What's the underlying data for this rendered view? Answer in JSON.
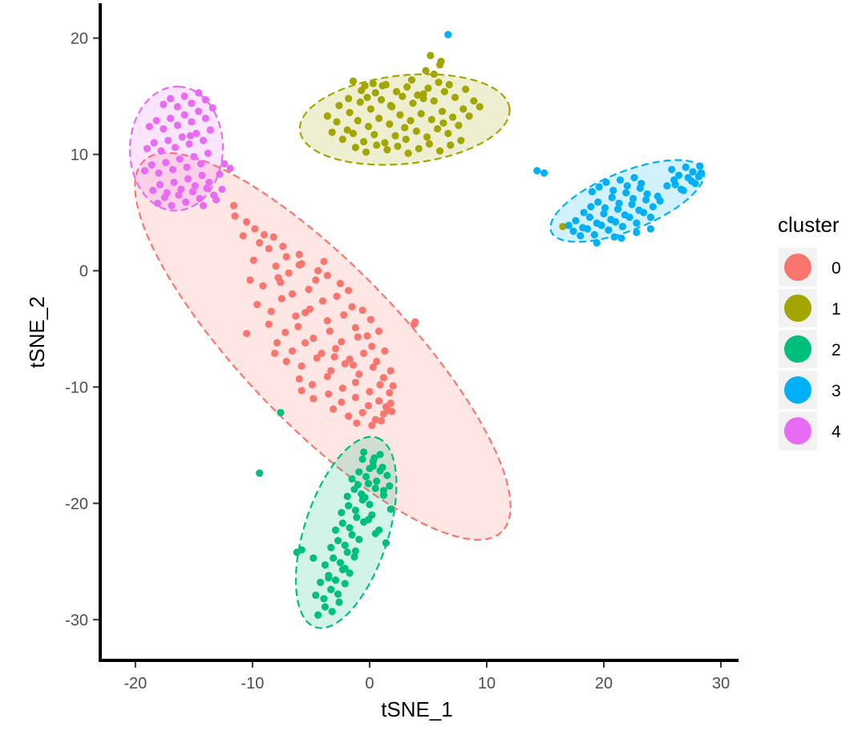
{
  "chart_data": {
    "type": "scatter",
    "xlabel": "tSNE_1",
    "ylabel": "tSNE_2",
    "xlim": [
      -23,
      31.5
    ],
    "ylim": [
      -33.5,
      23
    ],
    "x_ticks": [
      -20,
      -10,
      0,
      10,
      20,
      30
    ],
    "y_ticks": [
      -30,
      -20,
      -10,
      0,
      10,
      20
    ],
    "x_tick_labels": [
      "-20",
      "-10",
      "0",
      "10",
      "20",
      "30"
    ],
    "y_tick_labels": [
      "-30",
      "-20",
      "-10",
      "0",
      "10",
      "20"
    ],
    "grid": false,
    "legend": {
      "title": "cluster",
      "placement": "right",
      "entries": [
        "0",
        "1",
        "2",
        "3",
        "4"
      ]
    },
    "colors": {
      "0": "#F8766D",
      "1": "#A3A500",
      "2": "#00BF7D",
      "3": "#00B0F6",
      "4": "#E76BF3"
    },
    "ellipses": [
      {
        "cluster": "0",
        "cx": -4.0,
        "cy": -6.5,
        "rx": 22.0,
        "ry": 6.8,
        "angle_deg": -46
      },
      {
        "cluster": "1",
        "cx": 3.0,
        "cy": 13.0,
        "rx": 9.0,
        "ry": 3.8,
        "angle_deg": 6
      },
      {
        "cluster": "2",
        "cx": -2.0,
        "cy": -22.5,
        "rx": 8.5,
        "ry": 3.6,
        "angle_deg": 72
      },
      {
        "cluster": "3",
        "cx": 22.0,
        "cy": 6.0,
        "rx": 7.0,
        "ry": 2.5,
        "angle_deg": 22
      },
      {
        "cluster": "4",
        "cx": -16.5,
        "cy": 10.5,
        "rx": 5.3,
        "ry": 4.0,
        "angle_deg": 88
      }
    ],
    "series": [
      {
        "name": "0",
        "x": [
          -11.5,
          -10.5,
          -9.8,
          -8.2,
          -7.4,
          -6.0,
          -10.8,
          -9.4,
          -8.6,
          -7.1,
          -5.8,
          -4.4,
          -3.6,
          -9.9,
          -8.0,
          -6.9,
          -6.0,
          -4.6,
          -3.9,
          -2.5,
          -1.8,
          -10.2,
          -9.1,
          -7.6,
          -6.6,
          -5.2,
          -4.0,
          -2.8,
          -1.5,
          -0.6,
          -9.6,
          -8.4,
          -7.5,
          -6.3,
          -5.1,
          -3.6,
          -2.2,
          -1.2,
          0.1,
          -8.6,
          -7.2,
          -6.1,
          -4.8,
          -3.4,
          -2.4,
          -1.0,
          0.2,
          0.8,
          -7.9,
          -6.6,
          -5.5,
          -4.1,
          -2.9,
          -1.7,
          -0.5,
          0.6,
          1.3,
          -7.1,
          -5.8,
          -4.5,
          -3.3,
          -2.1,
          -0.9,
          0.3,
          1.2,
          1.8,
          -6.0,
          -4.9,
          -3.6,
          -2.3,
          -1.2,
          0.0,
          0.9,
          1.7,
          2.0,
          -4.8,
          -3.5,
          -2.4,
          -1.2,
          -0.1,
          0.8,
          1.6,
          -3.1,
          -1.8,
          -0.6,
          0.5,
          1.2,
          1.8,
          -1.1,
          0.2,
          1.0,
          1.9,
          1.4,
          -11.6,
          -9.0,
          -7.8,
          -5.5,
          -3.0,
          -10.5,
          -8.1,
          -5.8,
          -1.4,
          -0.2,
          3.8,
          3.9
        ],
        "y": [
          4.7,
          4.2,
          3.6,
          2.9,
          2.1,
          1.4,
          3.0,
          2.4,
          1.9,
          1.2,
          0.6,
          0.0,
          -0.4,
          0.9,
          0.4,
          -0.2,
          0.5,
          -0.8,
          0.8,
          -1.1,
          -1.7,
          -0.8,
          -1.3,
          -1.0,
          -2.0,
          -1.6,
          -2.6,
          -2.2,
          -3.1,
          -3.4,
          -2.9,
          -3.5,
          -2.4,
          -3.9,
          -3.3,
          -4.3,
          -3.8,
          -4.9,
          -4.2,
          -4.6,
          -5.3,
          -4.8,
          -5.8,
          -5.2,
          -6.1,
          -5.7,
          -6.5,
          -5.2,
          -6.2,
          -6.9,
          -6.2,
          -7.1,
          -6.7,
          -7.6,
          -7.1,
          -7.8,
          -6.9,
          -7.8,
          -8.2,
          -7.5,
          -8.6,
          -8.0,
          -8.9,
          -8.3,
          -9.2,
          -8.6,
          -9.3,
          -9.8,
          -9.1,
          -10.1,
          -9.6,
          -10.4,
          -9.8,
          -10.5,
          -9.9,
          -11.0,
          -10.6,
          -11.3,
          -10.9,
          -11.6,
          -11.2,
          -12.0,
          -11.9,
          -12.5,
          -12.2,
          -12.8,
          -12.3,
          -11.4,
          -13.1,
          -13.3,
          -12.9,
          -12.1,
          -11.7,
          5.6,
          3.1,
          -0.6,
          -3.6,
          -7.4,
          -5.4,
          -7.1,
          -10.3,
          -8.1,
          -5.6,
          -4.6,
          -4.4
        ]
      },
      {
        "name": "1",
        "x": [
          -3.6,
          -2.8,
          -1.9,
          -1.0,
          -0.1,
          0.8,
          1.7,
          2.6,
          3.5,
          4.4,
          5.3,
          6.2,
          7.1,
          8.0,
          8.9,
          -3.2,
          -2.3,
          -1.4,
          -0.5,
          0.4,
          1.3,
          2.2,
          3.1,
          4.0,
          4.9,
          5.8,
          6.7,
          7.6,
          8.5,
          9.4,
          -2.6,
          -1.7,
          -0.8,
          0.1,
          1.0,
          1.9,
          2.8,
          3.7,
          4.6,
          5.5,
          6.4,
          7.3,
          8.2,
          -1.2,
          -0.3,
          0.6,
          1.5,
          2.4,
          3.3,
          4.2,
          5.1,
          6.0,
          6.9,
          7.8,
          -0.4,
          0.5,
          1.4,
          2.3,
          3.2,
          4.1,
          5.0,
          5.9,
          6.8,
          -1.8,
          -0.7,
          0.3,
          1.8,
          3.0,
          4.6,
          6.3,
          -1.4,
          1.1,
          3.6,
          5.2,
          6.1,
          -0.2,
          4.8,
          5.5,
          6.0,
          16.5
        ],
        "y": [
          13.3,
          12.8,
          12.1,
          12.9,
          12.4,
          13.1,
          12.6,
          13.4,
          12.9,
          13.5,
          13.0,
          13.7,
          13.2,
          13.9,
          14.6,
          11.9,
          11.3,
          11.8,
          11.1,
          11.7,
          11.0,
          11.6,
          11.3,
          12.0,
          11.5,
          12.2,
          11.8,
          12.5,
          13.3,
          14.1,
          14.2,
          13.6,
          14.5,
          13.9,
          14.7,
          14.1,
          15.0,
          14.4,
          15.2,
          14.6,
          15.4,
          14.9,
          15.6,
          10.6,
          10.2,
          10.8,
          10.4,
          10.7,
          10.1,
          10.5,
          10.9,
          10.3,
          10.8,
          11.2,
          15.9,
          15.3,
          16.0,
          15.4,
          15.8,
          15.1,
          15.7,
          16.2,
          16.0,
          14.8,
          15.5,
          16.1,
          14.2,
          12.3,
          14.8,
          12.7,
          16.3,
          15.9,
          16.4,
          18.5,
          18.0,
          14.9,
          17.2,
          16.9,
          17.7,
          3.8
        ]
      },
      {
        "name": "2",
        "x": [
          -4.4,
          -3.8,
          -3.2,
          -2.6,
          -4.6,
          -3.9,
          -3.3,
          -2.7,
          -2.1,
          -4.2,
          -3.5,
          -2.9,
          -2.3,
          -1.7,
          -3.8,
          -3.1,
          -2.5,
          -1.9,
          -1.3,
          -3.3,
          -2.7,
          -2.1,
          -1.5,
          -0.9,
          -2.9,
          -2.3,
          -1.7,
          -1.1,
          -0.5,
          -2.4,
          -1.8,
          -1.2,
          -0.6,
          0.0,
          -1.9,
          -1.3,
          -0.7,
          -0.1,
          0.5,
          -1.5,
          -0.9,
          -0.3,
          0.3,
          0.9,
          -1.0,
          -0.4,
          0.2,
          0.8,
          1.4,
          -0.6,
          0.0,
          0.6,
          1.2,
          1.8,
          -0.1,
          0.5,
          1.1,
          1.7,
          0.3,
          0.9,
          1.5,
          -0.5,
          0.4,
          1.2,
          -1.2,
          -2.1,
          -3.5,
          -4.8,
          -6.2,
          -5.8,
          -7.6,
          -9.4
        ],
        "y": [
          -29.6,
          -28.9,
          -29.3,
          -28.5,
          -27.9,
          -28.2,
          -27.4,
          -27.8,
          -26.9,
          -26.8,
          -26.2,
          -26.6,
          -25.7,
          -26.0,
          -25.3,
          -24.7,
          -25.1,
          -24.2,
          -24.6,
          -23.8,
          -23.2,
          -23.6,
          -22.7,
          -23.1,
          -22.3,
          -21.7,
          -22.1,
          -21.2,
          -21.6,
          -20.8,
          -20.2,
          -20.6,
          -19.7,
          -20.1,
          -19.4,
          -18.8,
          -19.2,
          -18.3,
          -18.7,
          -17.9,
          -17.3,
          -17.7,
          -16.8,
          -17.2,
          -18.4,
          -19.5,
          -21.0,
          -22.3,
          -23.4,
          -16.2,
          -17.0,
          -18.1,
          -19.3,
          -20.5,
          -21.4,
          -22.6,
          -16.9,
          -18.5,
          -16.4,
          -15.8,
          -17.6,
          -15.6,
          -16.1,
          -18.9,
          -24.1,
          -25.6,
          -26.4,
          -24.7,
          -24.2,
          -24.0,
          -12.2,
          -17.4
        ]
      },
      {
        "name": "3",
        "x": [
          17.0,
          17.6,
          18.2,
          18.8,
          19.4,
          20.0,
          20.6,
          21.2,
          21.8,
          22.4,
          23.0,
          23.6,
          24.2,
          17.4,
          18.0,
          18.6,
          19.2,
          19.8,
          20.4,
          21.0,
          21.6,
          22.2,
          22.8,
          23.4,
          24.0,
          18.3,
          18.9,
          19.5,
          20.1,
          20.7,
          21.3,
          21.9,
          22.5,
          23.1,
          23.7,
          19.0,
          19.6,
          20.2,
          20.8,
          21.4,
          22.0,
          22.6,
          23.2,
          24.6,
          25.4,
          26.0,
          26.6,
          27.2,
          27.8,
          28.3,
          25.8,
          26.4,
          27.0,
          27.6,
          28.2,
          26.1,
          26.8,
          27.5,
          28.1,
          24.8,
          21.5,
          22.8,
          24.0,
          19.4,
          20.9,
          14.3,
          14.9,
          6.7
        ],
        "y": [
          3.9,
          4.3,
          3.7,
          4.6,
          4.1,
          4.9,
          4.4,
          5.3,
          4.8,
          5.7,
          5.2,
          6.1,
          5.5,
          3.4,
          3.0,
          3.6,
          3.1,
          3.9,
          3.5,
          4.2,
          3.8,
          4.6,
          4.1,
          5.0,
          4.6,
          5.0,
          5.5,
          5.9,
          5.4,
          6.3,
          5.8,
          6.7,
          6.2,
          7.1,
          6.6,
          6.8,
          7.2,
          7.6,
          6.9,
          7.8,
          7.3,
          8.0,
          7.5,
          6.4,
          7.3,
          7.8,
          7.0,
          8.0,
          7.5,
          8.4,
          8.7,
          8.2,
          8.9,
          8.5,
          9.0,
          7.4,
          6.9,
          7.7,
          8.1,
          6.0,
          2.8,
          3.3,
          3.6,
          2.4,
          2.9,
          8.6,
          8.4,
          20.3
        ]
      },
      {
        "name": "4",
        "x": [
          -19.2,
          -18.6,
          -18.0,
          -17.4,
          -16.8,
          -16.2,
          -15.6,
          -15.0,
          -14.4,
          -13.8,
          -19.0,
          -18.4,
          -17.8,
          -17.2,
          -16.6,
          -16.0,
          -15.4,
          -14.8,
          -14.2,
          -13.6,
          -18.8,
          -18.2,
          -17.6,
          -17.0,
          -16.4,
          -15.8,
          -15.2,
          -14.6,
          -14.0,
          -13.4,
          -18.5,
          -17.9,
          -17.3,
          -16.7,
          -16.1,
          -15.5,
          -14.9,
          -14.3,
          -13.7,
          -18.1,
          -17.5,
          -16.9,
          -16.3,
          -15.7,
          -15.1,
          -14.5,
          -13.9,
          -13.3,
          -17.6,
          -17.0,
          -16.4,
          -15.8,
          -15.2,
          -14.6,
          -14.0,
          -12.8,
          -12.4,
          -11.9,
          -12.6,
          -13.1,
          -14.2,
          -15.3
        ],
        "y": [
          8.6,
          9.1,
          8.4,
          9.3,
          8.7,
          9.6,
          8.9,
          9.8,
          9.2,
          10.1,
          10.5,
          11.0,
          10.3,
          11.2,
          10.6,
          11.5,
          10.9,
          11.8,
          11.2,
          12.1,
          12.4,
          12.9,
          12.2,
          13.1,
          12.5,
          13.4,
          12.8,
          13.7,
          13.1,
          14.0,
          6.9,
          7.4,
          6.7,
          7.6,
          7.0,
          7.9,
          7.3,
          8.2,
          7.6,
          5.8,
          6.3,
          5.6,
          6.5,
          5.9,
          6.8,
          6.2,
          7.1,
          6.5,
          14.3,
          14.8,
          14.1,
          15.0,
          14.4,
          15.3,
          14.7,
          8.3,
          9.2,
          8.8,
          7.0,
          6.1,
          5.6,
          11.6
        ]
      }
    ]
  }
}
